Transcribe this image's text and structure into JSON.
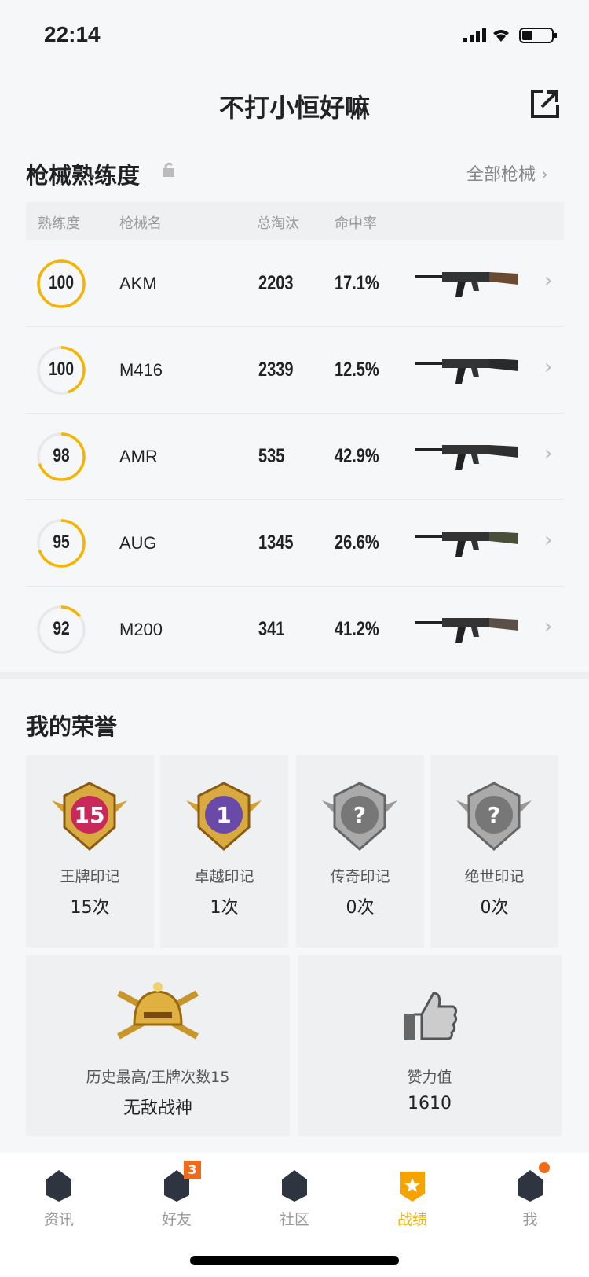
{
  "status": {
    "time": "22:14"
  },
  "header": {
    "title": "不打小恒好嘛",
    "share_icon": "share-icon"
  },
  "weapons": {
    "title": "枪械熟练度",
    "all_link": "全部枪械",
    "columns": [
      "熟练度",
      "枪械名",
      "总淘汰",
      "命中率"
    ],
    "accent": "#f5b400",
    "rows": [
      {
        "level": "100",
        "progress": 1.0,
        "name": "AKM",
        "kills": "2203",
        "rate": "17.1%",
        "gun": "#6b4a33"
      },
      {
        "level": "100",
        "progress": 0.45,
        "name": "M416",
        "kills": "2339",
        "rate": "12.5%",
        "gun": "#2a2a2a"
      },
      {
        "level": "98",
        "progress": 0.7,
        "name": "AMR",
        "kills": "535",
        "rate": "42.9%",
        "gun": "#2f2f2f"
      },
      {
        "level": "95",
        "progress": 0.7,
        "name": "AUG",
        "kills": "1345",
        "rate": "26.6%",
        "gun": "#4a4f3a"
      },
      {
        "level": "92",
        "progress": 0.15,
        "name": "M200",
        "kills": "341",
        "rate": "41.2%",
        "gun": "#5a5048"
      }
    ]
  },
  "honors": {
    "title": "我的荣誉",
    "badges": [
      {
        "label": "王牌印记",
        "value": "15次",
        "badge_text": "15",
        "color": "#c8285a"
      },
      {
        "label": "卓越印记",
        "value": "1次",
        "badge_text": "1",
        "color": "#6a4aa8"
      },
      {
        "label": "传奇印记",
        "value": "0次",
        "badge_text": "?",
        "color": "#888"
      },
      {
        "label": "绝世印记",
        "value": "0次",
        "badge_text": "?",
        "color": "#888"
      }
    ],
    "highest": {
      "label": "历史最高/王牌次数15",
      "value": "无敌战神"
    },
    "likes": {
      "label": "赞力值",
      "value": "1610"
    }
  },
  "tabs": [
    {
      "label": "资讯",
      "icon": "news-icon"
    },
    {
      "label": "好友",
      "icon": "friends-icon",
      "badge": "3"
    },
    {
      "label": "社区",
      "icon": "community-icon"
    },
    {
      "label": "战绩",
      "icon": "record-icon",
      "active": true
    },
    {
      "label": "我",
      "icon": "profile-icon",
      "dot": true
    }
  ]
}
